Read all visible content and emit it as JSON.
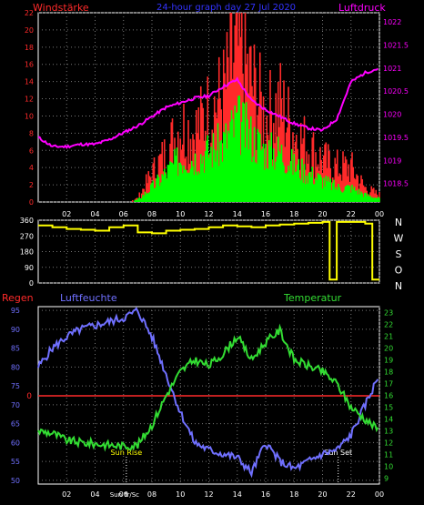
{
  "header": {
    "left_title": "Windstärke",
    "center_title": "24-hour graph day  27 Jul 2020",
    "right_title": "Luftdruck"
  },
  "colors": {
    "background": "#000000",
    "frame": "#ffffff",
    "wind_max": "#ff2a2a",
    "wind_avg": "#00ff00",
    "pressure": "#ff00ff",
    "direction": "#ffff00",
    "humidity": "#7070ff",
    "temperature": "#33dd33",
    "rain": "#ff2a2a",
    "title_center": "#3333ff",
    "compass": "#ffffff"
  },
  "chart_data": [
    {
      "type": "bar",
      "title": "24-hour graph day  27 Jul 2020",
      "ylabel": "Windstärke",
      "y2label": "Luftdruck",
      "x_ticks": [
        "02",
        "04",
        "06",
        "08",
        "10",
        "12",
        "14",
        "16",
        "18",
        "20",
        "22",
        "00"
      ],
      "y_ticks": [
        "0",
        "2",
        "4",
        "6",
        "8",
        "10",
        "12",
        "14",
        "16",
        "18",
        "20",
        "22"
      ],
      "y2_ticks": [
        "1018.5",
        "1019",
        "1019.5",
        "1020",
        "1020.5",
        "1021",
        "1021.5",
        "1022"
      ],
      "ylim": [
        0,
        22
      ],
      "y2lim": [
        1018.1,
        1022.2
      ],
      "xlim": [
        0,
        24
      ],
      "grid": true,
      "hours": [
        0,
        1,
        2,
        3,
        4,
        5,
        6,
        7,
        8,
        9,
        10,
        11,
        12,
        13,
        14,
        15,
        16,
        17,
        18,
        19,
        20,
        21,
        22,
        23,
        24
      ],
      "series": [
        {
          "name": "Luftdruck",
          "axis": "y2",
          "type": "line",
          "values": [
            1019.5,
            1019.3,
            1019.3,
            1019.35,
            1019.35,
            1019.45,
            1019.6,
            1019.75,
            1019.95,
            1020.15,
            1020.25,
            1020.35,
            1020.4,
            1020.6,
            1020.75,
            1020.3,
            1020.1,
            1019.95,
            1019.8,
            1019.7,
            1019.65,
            1019.9,
            1020.7,
            1020.9,
            1021.0
          ]
        },
        {
          "name": "Windstärke max",
          "axis": "y",
          "type": "bar",
          "values": [
            0,
            0,
            0,
            0,
            0,
            0,
            0,
            0.5,
            4,
            7,
            11,
            10,
            13,
            15,
            22,
            17,
            12,
            14,
            10,
            8,
            6,
            5,
            5,
            2,
            1
          ]
        },
        {
          "name": "Windstärke mittel",
          "axis": "y",
          "type": "bar",
          "values": [
            0,
            0,
            0,
            0,
            0,
            0,
            0,
            0.3,
            2,
            4,
            6,
            6,
            7,
            8,
            11,
            9,
            7,
            7,
            5,
            4,
            3,
            2,
            2,
            1,
            0.5
          ]
        }
      ]
    },
    {
      "type": "line",
      "title": "",
      "ylim": [
        0,
        360
      ],
      "y_ticks": [
        "0",
        "90",
        "180",
        "270",
        "360"
      ],
      "y2_labels": [
        "N",
        "W",
        "S",
        "O",
        "N"
      ],
      "x_ticks": [
        "02",
        "04",
        "06",
        "08",
        "10",
        "12",
        "14",
        "16",
        "18",
        "20",
        "22",
        "00"
      ],
      "xlim": [
        0,
        24
      ],
      "grid": true,
      "series": [
        {
          "name": "Windrichtung",
          "x": [
            0,
            1,
            2,
            3,
            4,
            5,
            6,
            7,
            8,
            9,
            10,
            11,
            12,
            13,
            14,
            15,
            16,
            17,
            18,
            19,
            20,
            20.5,
            21,
            22,
            23,
            23.5,
            24
          ],
          "values": [
            330,
            320,
            310,
            305,
            300,
            320,
            330,
            290,
            285,
            300,
            305,
            310,
            320,
            330,
            325,
            320,
            330,
            335,
            340,
            345,
            350,
            20,
            350,
            350,
            340,
            20,
            20
          ]
        }
      ]
    },
    {
      "type": "line",
      "title": "",
      "legend": [
        "Regen",
        "Luftfeuchte",
        "Temperatur"
      ],
      "xlim": [
        0,
        24
      ],
      "x_ticks": [
        "02",
        "04",
        "06",
        "08",
        "10",
        "12",
        "14",
        "16",
        "18",
        "20",
        "22",
        "00"
      ],
      "y_ticks": [
        "50",
        "55",
        "60",
        "65",
        "70",
        "75",
        "80",
        "85",
        "90",
        "95"
      ],
      "y2_ticks": [
        "9",
        "10",
        "11",
        "12",
        "13",
        "14",
        "15",
        "16",
        "17",
        "18",
        "19",
        "20",
        "21",
        "22",
        "23"
      ],
      "ylim": [
        49,
        96
      ],
      "y2lim": [
        8.5,
        23.5
      ],
      "rain_marker": "0",
      "annotations": [
        {
          "text": "Sun Rise",
          "x": 6.2
        },
        {
          "text": "Sun Set",
          "x": 21.1
        },
        {
          "text": "Sun Tr/Sc",
          "x": 6.2
        }
      ],
      "grid": true,
      "series": [
        {
          "name": "Luftfeuchte",
          "axis": "y",
          "x": [
            0,
            1,
            2,
            3,
            4,
            5,
            6,
            7,
            8,
            9,
            10,
            11,
            12,
            13,
            14,
            15,
            16,
            17,
            18,
            19,
            20,
            21,
            22,
            23,
            24
          ],
          "values": [
            80,
            85,
            88,
            90,
            91,
            92,
            93,
            95,
            88,
            78,
            68,
            60,
            58,
            57,
            56,
            52,
            60,
            55,
            53,
            55,
            57,
            58,
            62,
            70,
            78
          ]
        },
        {
          "name": "Temperatur",
          "axis": "y2",
          "x": [
            0,
            1,
            2,
            3,
            4,
            5,
            6,
            7,
            8,
            9,
            10,
            11,
            12,
            13,
            14,
            15,
            16,
            17,
            18,
            19,
            20,
            21,
            22,
            23,
            24
          ],
          "values": [
            13,
            12.8,
            12.2,
            12,
            11.9,
            11.8,
            11.7,
            11.8,
            13.5,
            16,
            18,
            19,
            18.5,
            19.5,
            21,
            19,
            20.5,
            21.5,
            19,
            18.5,
            18,
            17,
            15,
            14,
            13
          ]
        }
      ]
    }
  ],
  "bottom_axis_extra": "Sun Tr/Sc"
}
